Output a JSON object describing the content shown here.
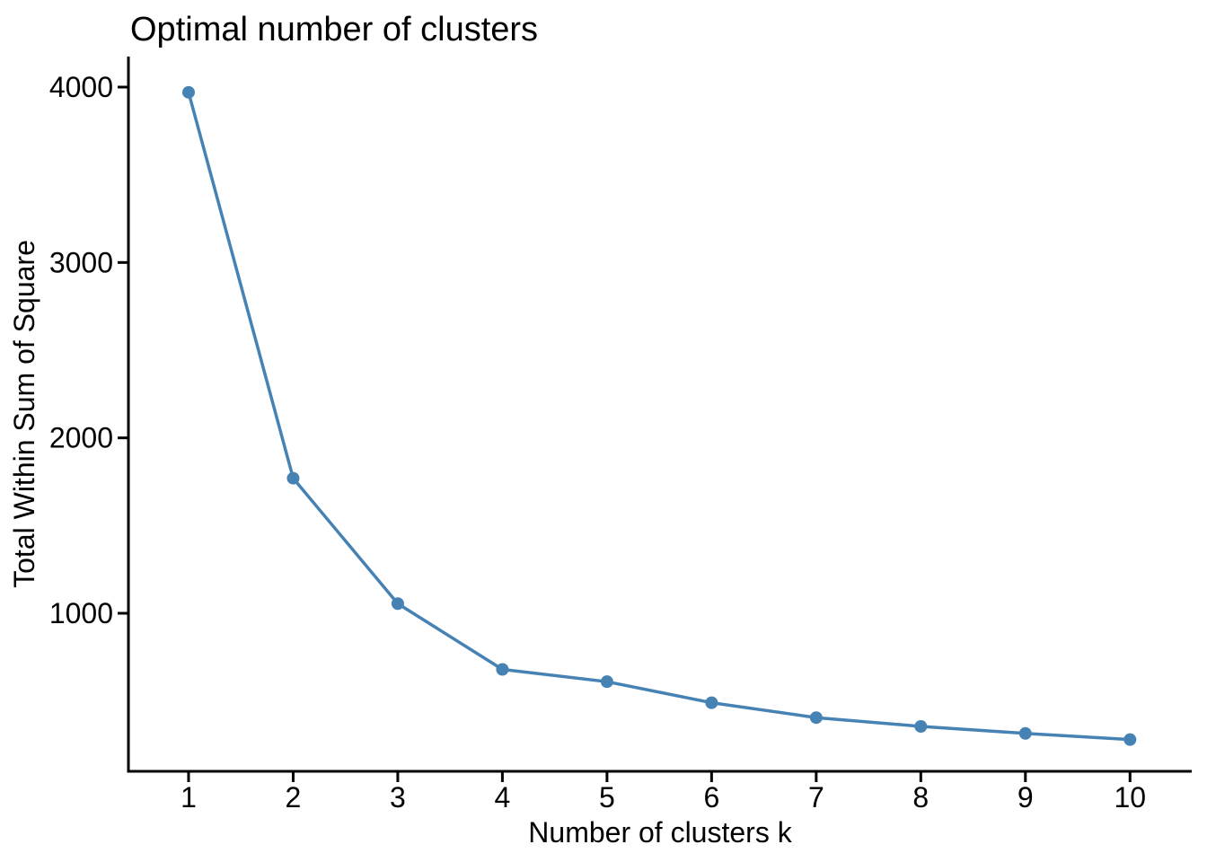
{
  "figure": {
    "background": "#ffffff",
    "text_color": "#000000"
  },
  "chart_data": {
    "type": "line",
    "title": "Optimal number of clusters",
    "xlabel": "Number of clusters k",
    "ylabel": "Total Within Sum of Square",
    "series": [
      {
        "name": "total-within-sum-of-square",
        "x": [
          1,
          2,
          3,
          4,
          5,
          6,
          7,
          8,
          9,
          10
        ],
        "y": [
          3970,
          1770,
          1055,
          680,
          610,
          490,
          405,
          355,
          315,
          280
        ]
      }
    ],
    "xticks": [
      1,
      2,
      3,
      4,
      5,
      6,
      7,
      8,
      9,
      10
    ],
    "xtick_labels": [
      "1",
      "2",
      "3",
      "4",
      "5",
      "6",
      "7",
      "8",
      "9",
      "10"
    ],
    "yticks": [
      1000,
      2000,
      3000,
      4000
    ],
    "ytick_labels": [
      "1000",
      "2000",
      "3000",
      "4000"
    ],
    "xlim": [
      0.425,
      10.59
    ],
    "ylim": [
      99,
      4174
    ],
    "grid": false,
    "legend": null,
    "line_color": "#4682B4",
    "point_color": "#4682B4",
    "axis_color": "#000000"
  }
}
